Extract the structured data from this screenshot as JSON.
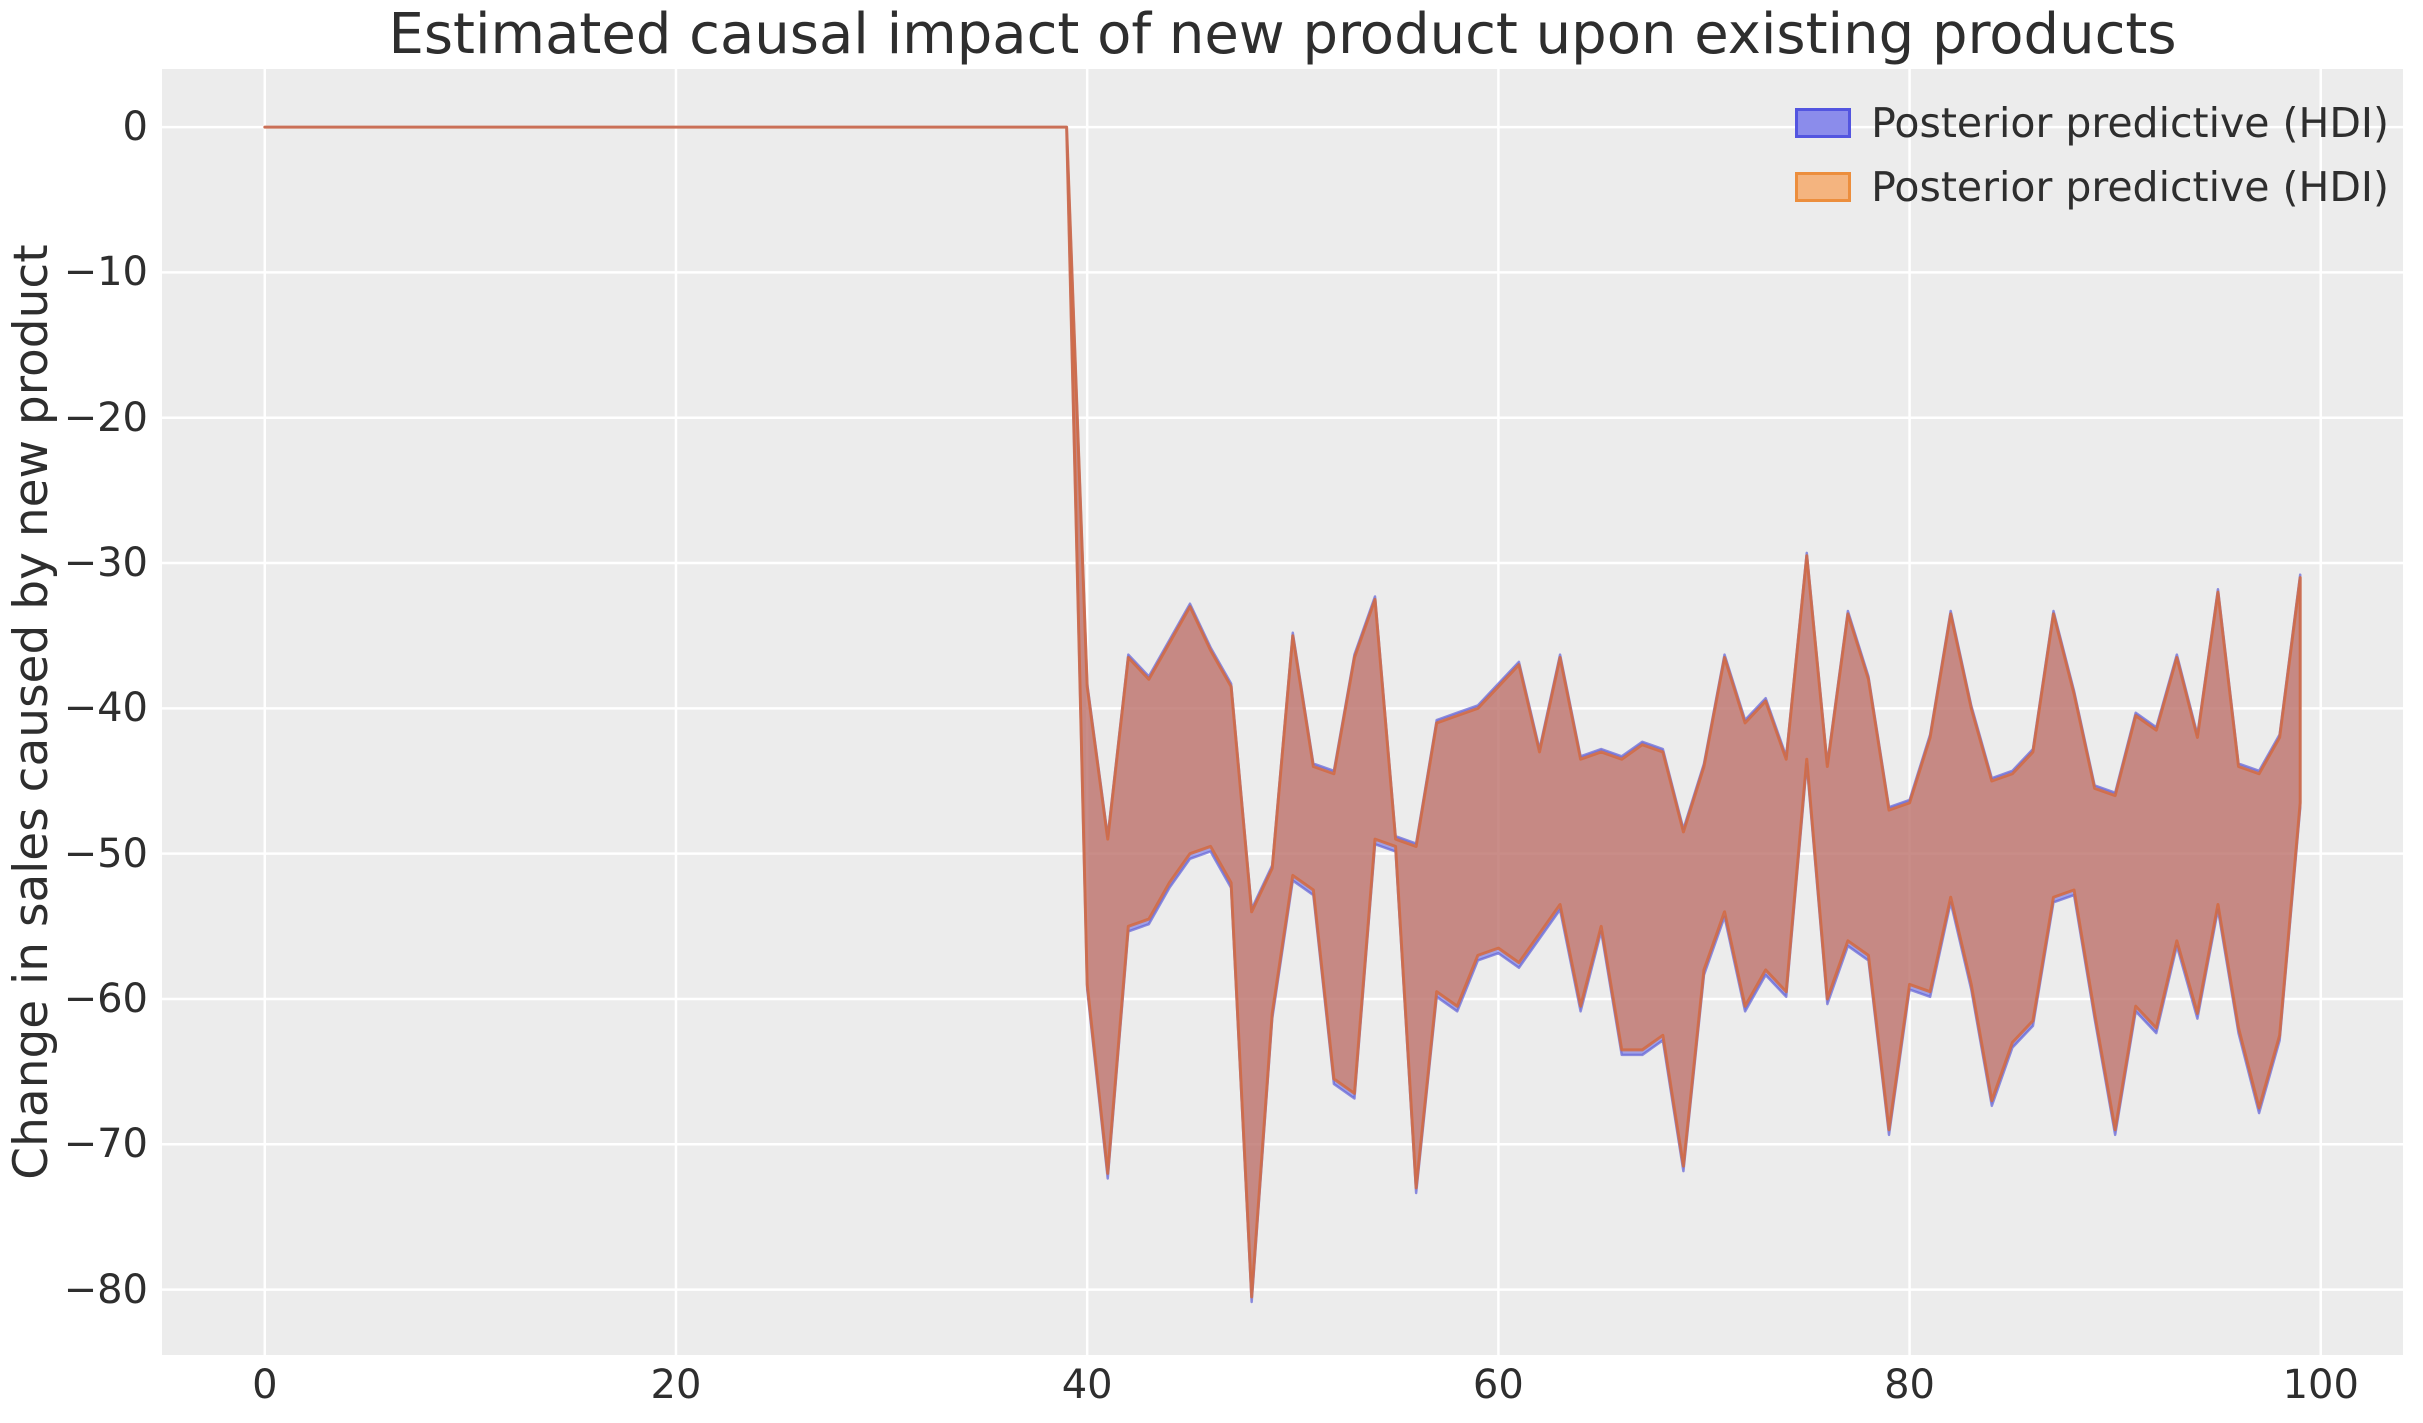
{
  "figure": {
    "title": "Estimated causal impact of new product upon existing products",
    "ylabel": "Change in sales caused by new product"
  },
  "legend": {
    "entries": [
      {
        "label": "Posterior predictive (HDI)",
        "fill": "#8b8ceb",
        "border": "#5355e0"
      },
      {
        "label": "Posterior predictive (HDI)",
        "fill": "#f4b47f",
        "border": "#ec8e3d"
      }
    ]
  },
  "chart_data": {
    "type": "area",
    "title": "Estimated causal impact of new product upon existing products",
    "xlabel": "",
    "ylabel": "Change in sales caused by new product",
    "xlim": [
      -5,
      104
    ],
    "ylim": [
      -84.5,
      4
    ],
    "xticks": [
      0,
      20,
      40,
      60,
      80,
      100
    ],
    "yticks": [
      0,
      -10,
      -20,
      -30,
      -40,
      -50,
      -60,
      -70,
      -80
    ],
    "grid": true,
    "legend_position": "upper right",
    "pre_period_flat": {
      "x_start": 0,
      "x_end": 39,
      "value": 0
    },
    "band_x": [
      40,
      41,
      42,
      43,
      44,
      45,
      46,
      47,
      48,
      49,
      50,
      51,
      52,
      53,
      54,
      55,
      56,
      57,
      58,
      59,
      60,
      61,
      62,
      63,
      64,
      65,
      66,
      67,
      68,
      69,
      70,
      71,
      72,
      73,
      74,
      75,
      76,
      77,
      78,
      79,
      80,
      81,
      82,
      83,
      84,
      85,
      86,
      87,
      88,
      89,
      90,
      91,
      92,
      93,
      94,
      95,
      96,
      97,
      98,
      99
    ],
    "band_upper": [
      -38.5,
      -49,
      -36.5,
      -38,
      -35.5,
      -33,
      -36,
      -38.5,
      -54,
      -51,
      -35,
      -44,
      -44.5,
      -36.5,
      -32.5,
      -49,
      -49.5,
      -41,
      -40.5,
      -40,
      -38.5,
      -37,
      -43,
      -36.5,
      -43.5,
      -43,
      -43.5,
      -42.5,
      -43,
      -48.5,
      -44,
      -36.5,
      -41,
      -39.5,
      -43.5,
      -29.5,
      -44,
      -33.5,
      -38,
      -47,
      -46.5,
      -42,
      -33.5,
      -40,
      -45,
      -44.5,
      -43,
      -33.5,
      -39,
      -45.5,
      -46,
      -40.5,
      -41.5,
      -36.5,
      -42,
      -32,
      -44,
      -44.5,
      -42,
      -31
    ],
    "band_lower": [
      -59,
      -72,
      -55,
      -54.5,
      -52,
      -50,
      -49.5,
      -52,
      -80.5,
      -61,
      -51.5,
      -52.5,
      -65.5,
      -66.5,
      -49,
      -49.5,
      -73,
      -59.5,
      -60.5,
      -57,
      -56.5,
      -57.5,
      -55.5,
      -53.5,
      -60.5,
      -55,
      -63.5,
      -63.5,
      -62.5,
      -71.5,
      -58,
      -54,
      -60.5,
      -58,
      -59.5,
      -43.5,
      -60,
      -56,
      -57,
      -69,
      -59,
      -59.5,
      -53,
      -59,
      -67,
      -63,
      -61.5,
      -53,
      -52.5,
      -61,
      -69,
      -60.5,
      -62,
      -56,
      -61,
      -53.5,
      -62,
      -67.5,
      -62.5,
      -46.5
    ],
    "series": [
      {
        "name": "Posterior predictive (HDI)",
        "color_key": "blue",
        "upper_offset": 0.2,
        "lower_offset": -0.35
      },
      {
        "name": "Posterior predictive (HDI)",
        "color_key": "orange",
        "upper_offset": 0,
        "lower_offset": 0
      }
    ],
    "colors": {
      "panel_background": "#ececec",
      "gridline": "#ffffff",
      "blue_fill": "rgba(81,83,226,0.50)",
      "blue_edge": "rgba(99,99,214,0.70)",
      "orange_fill": "rgba(225,120,60,0.58)",
      "orange_edge": "rgba(211,106,64,0.85)"
    }
  }
}
